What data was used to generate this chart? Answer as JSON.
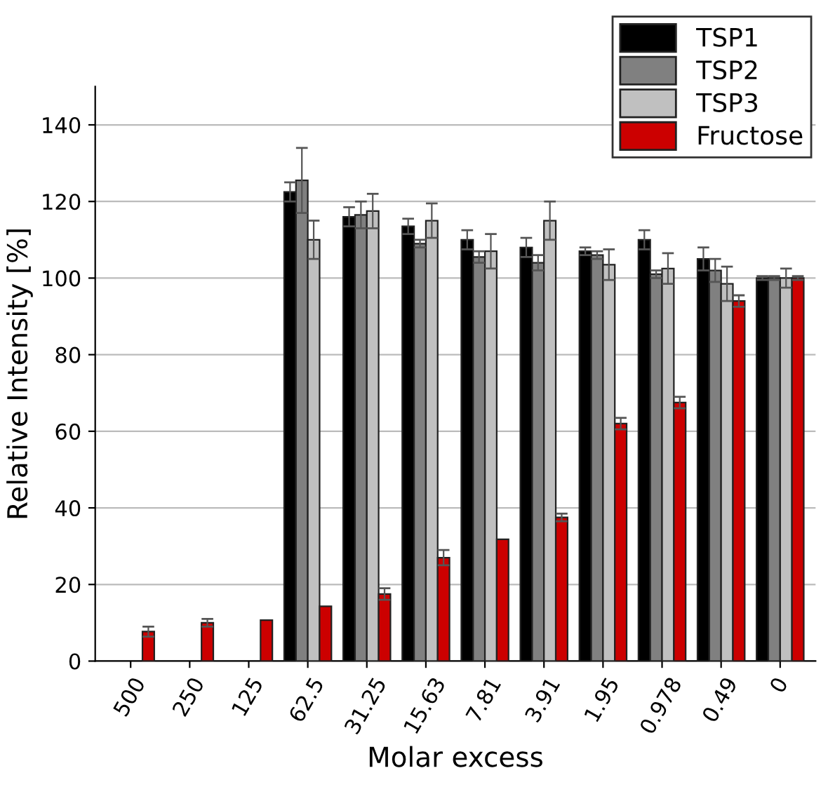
{
  "chart_data": {
    "type": "bar",
    "xlabel": "Molar excess",
    "ylabel": "Relative Intensity [%]",
    "categories": [
      "500",
      "250",
      "125",
      "62.5",
      "31.25",
      "15.63",
      "7.81",
      "3.91",
      "1.95",
      "0.978",
      "0.49",
      "0"
    ],
    "series": [
      {
        "name": "TSP1",
        "color": "#000000",
        "values": [
          null,
          null,
          null,
          122.5,
          116,
          113.5,
          110,
          108,
          107,
          110,
          105,
          100
        ],
        "errors": [
          null,
          null,
          null,
          2.5,
          2.5,
          2,
          2.5,
          2.5,
          1,
          2.5,
          3,
          0.5
        ]
      },
      {
        "name": "TSP2",
        "color": "#808080",
        "values": [
          null,
          null,
          null,
          125.5,
          116.5,
          109,
          105.5,
          104,
          106,
          101,
          102,
          100
        ],
        "errors": [
          null,
          null,
          null,
          8.5,
          3.5,
          1,
          1.5,
          2,
          1,
          1,
          3,
          0.5
        ]
      },
      {
        "name": "TSP3",
        "color": "#c0c0c0",
        "values": [
          null,
          null,
          null,
          110,
          117.5,
          115,
          107,
          115,
          103.5,
          102.5,
          98.5,
          100
        ],
        "errors": [
          null,
          null,
          null,
          5,
          4.5,
          4.5,
          4.5,
          5,
          4,
          4,
          4.5,
          2.5
        ]
      },
      {
        "name": "Fructose",
        "color": "#cc0000",
        "values": [
          7.7,
          10,
          10.7,
          14.3,
          17.5,
          27,
          31.8,
          37.5,
          62,
          67.5,
          94,
          100
        ],
        "errors": [
          1.3,
          1,
          null,
          null,
          1.5,
          2,
          null,
          1,
          1.5,
          1.5,
          1.5,
          0.5
        ]
      }
    ],
    "ylim": [
      0,
      150
    ],
    "yticks": [
      0,
      20,
      40,
      60,
      80,
      100,
      120,
      140
    ],
    "grid": "y",
    "legend": "top right"
  }
}
